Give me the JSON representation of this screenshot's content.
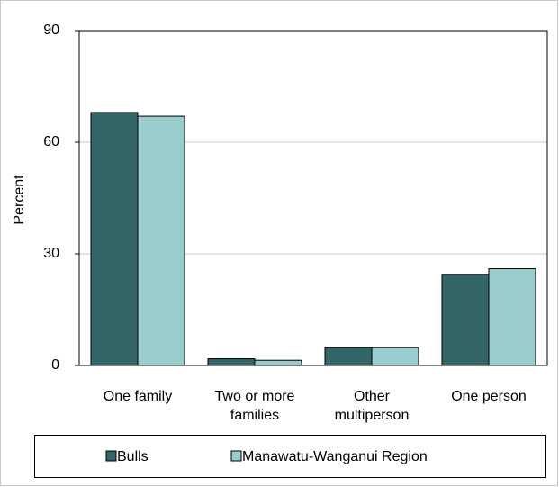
{
  "chart_data": {
    "type": "bar",
    "y_label": "Percent",
    "categories": [
      "One family",
      "Two or more families",
      "Other multiperson",
      "One person"
    ],
    "series": [
      {
        "name": "Bulls",
        "color": "#336666",
        "values": [
          68,
          1.8,
          4.8,
          24.5
        ]
      },
      {
        "name": "Manawatu-Wanganui Region",
        "color": "#99cccc",
        "values": [
          67,
          1.4,
          4.8,
          26
        ]
      }
    ],
    "ylim": [
      0,
      90
    ],
    "yticks": [
      0,
      30,
      60,
      90
    ],
    "grid": true,
    "legend": "bottom"
  }
}
